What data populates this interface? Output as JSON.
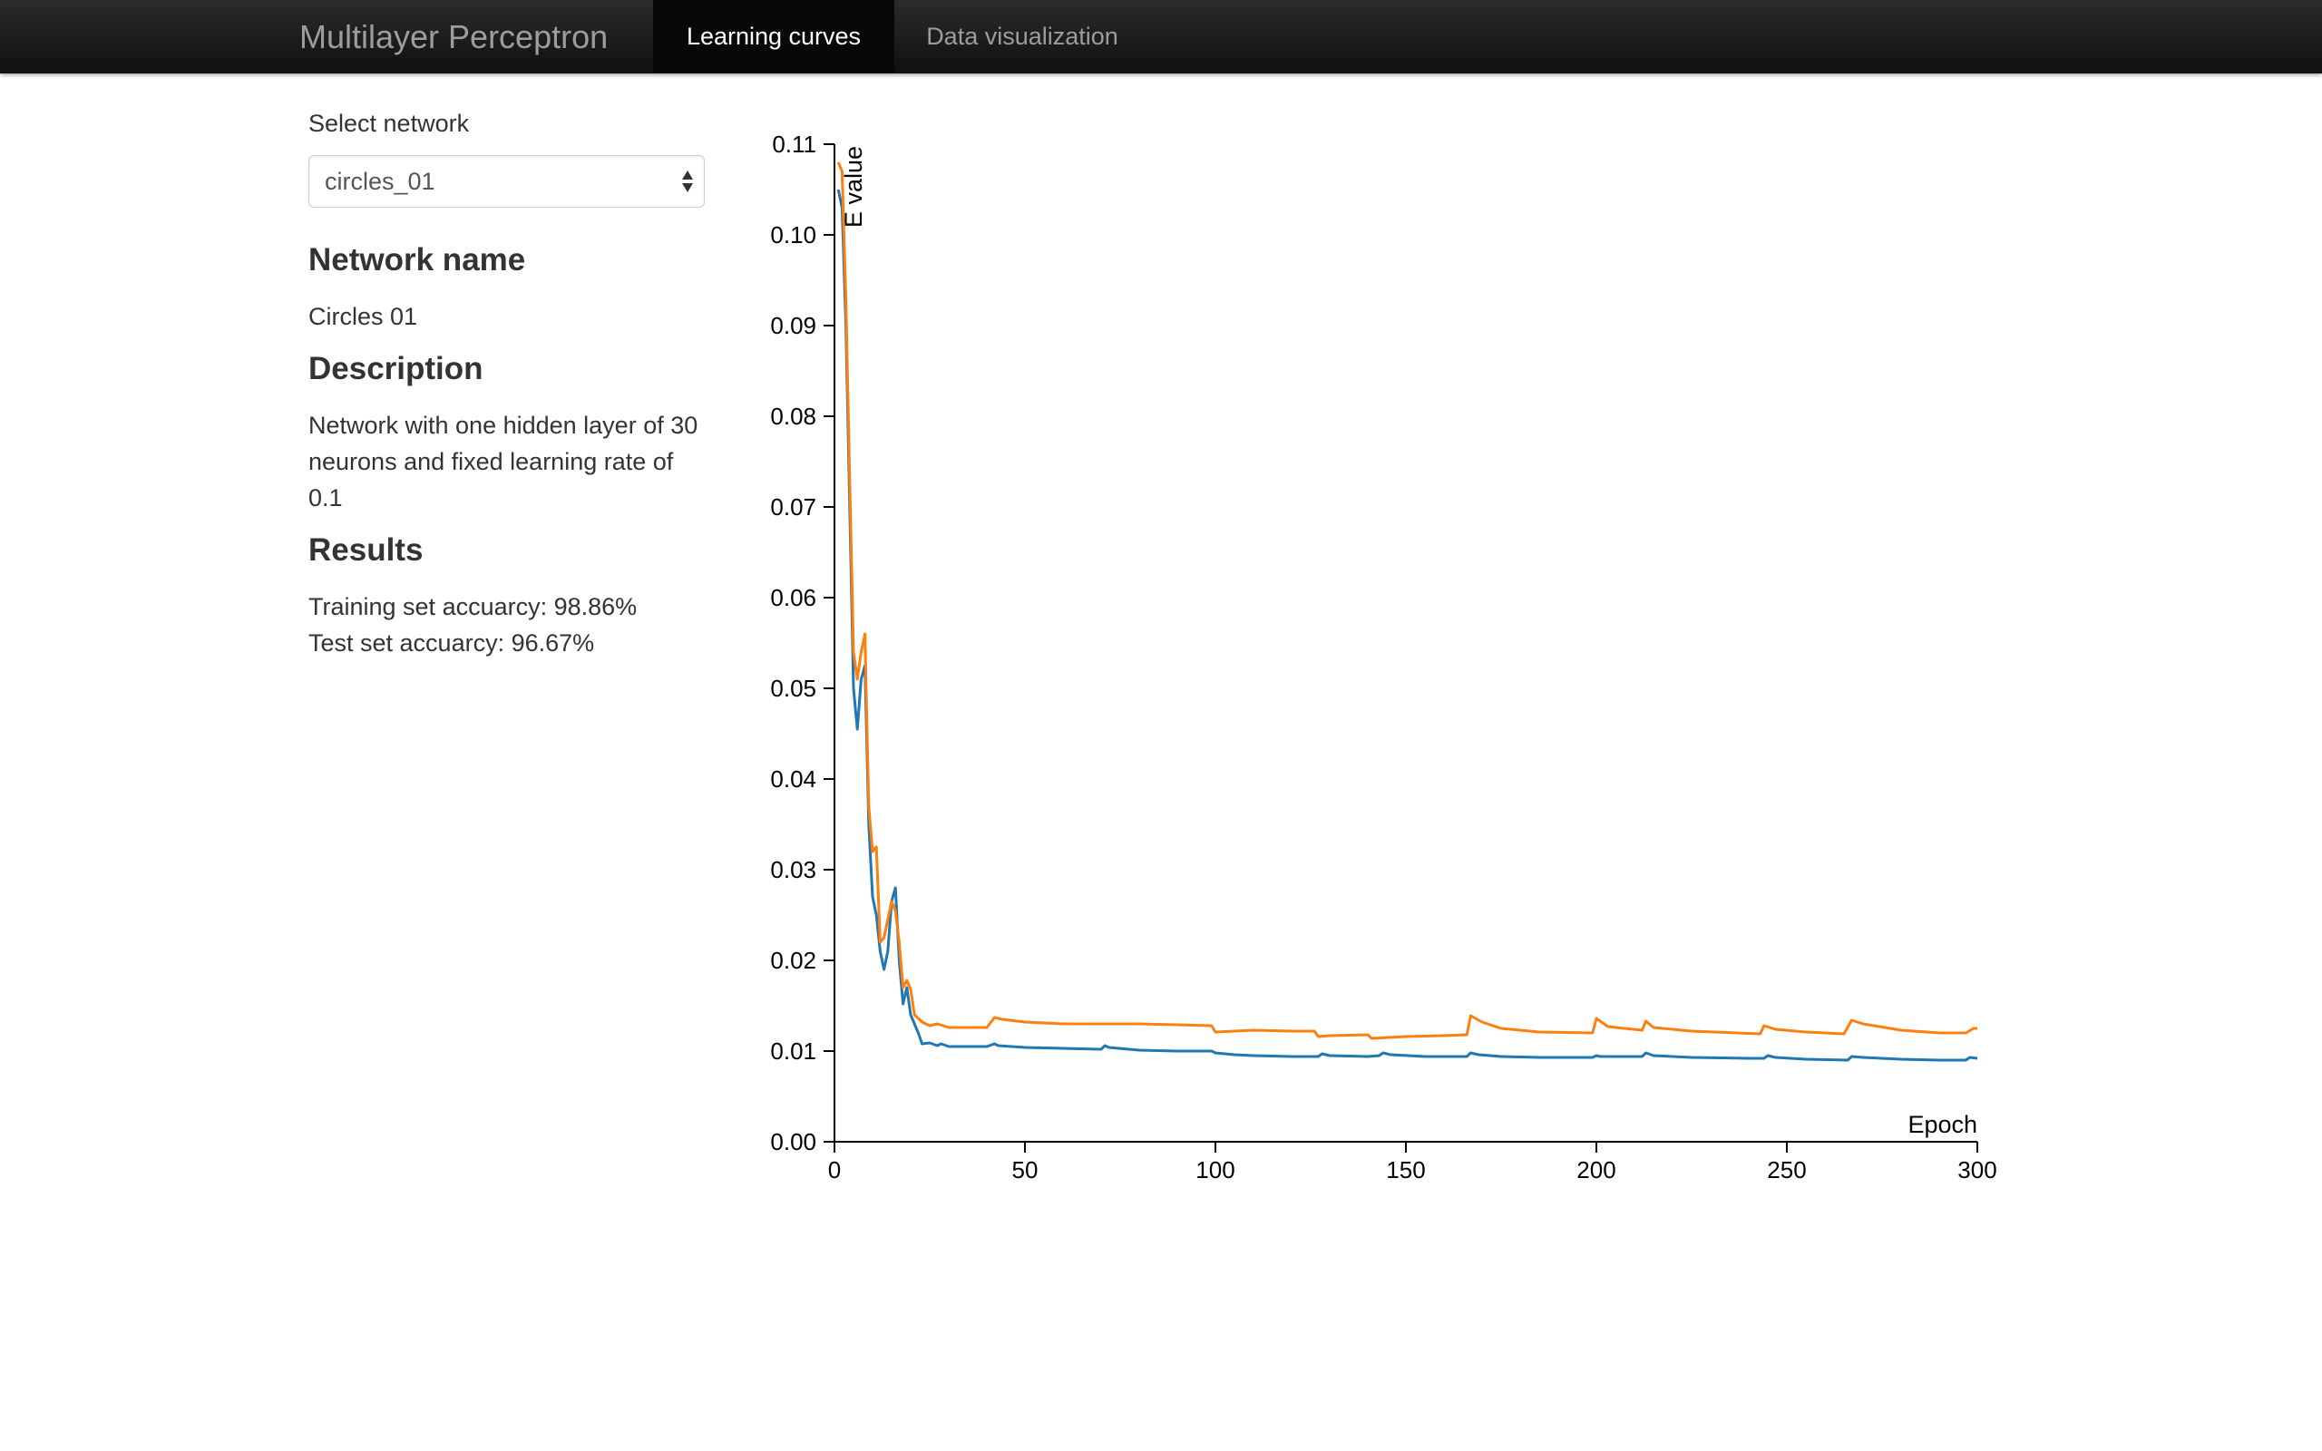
{
  "navbar": {
    "brand": "Multilayer Perceptron",
    "tabs": [
      {
        "label": "Learning curves",
        "active": true
      },
      {
        "label": "Data visualization",
        "active": false
      }
    ]
  },
  "sidebar": {
    "select_label": "Select network",
    "select_value": "circles_01",
    "network_name_heading": "Network name",
    "network_name": "Circles 01",
    "description_heading": "Description",
    "description": "Network with one hidden layer of 30 neurons and fixed learning rate of 0.1",
    "results_heading": "Results",
    "training_accuracy": "Training set accuarcy: 98.86%",
    "test_accuracy": "Test set accuarcy: 96.67%"
  },
  "chart_data": {
    "type": "line",
    "title": "",
    "xlabel": "Epoch",
    "ylabel": "E value",
    "xlim": [
      0,
      300
    ],
    "ylim": [
      0,
      0.11
    ],
    "x_ticks": [
      "0",
      "50",
      "100",
      "150",
      "200",
      "250",
      "300"
    ],
    "y_ticks": [
      "0.00",
      "0.01",
      "0.02",
      "0.03",
      "0.04",
      "0.05",
      "0.06",
      "0.07",
      "0.08",
      "0.09",
      "0.10",
      "0.11"
    ],
    "grid": false,
    "legend": "none",
    "series": [
      {
        "color": "#1f77b4",
        "points": [
          [
            1,
            0.105
          ],
          [
            2,
            0.103
          ],
          [
            3,
            0.09
          ],
          [
            4,
            0.07
          ],
          [
            5,
            0.05
          ],
          [
            6,
            0.0455
          ],
          [
            7,
            0.051
          ],
          [
            8,
            0.0525
          ],
          [
            9,
            0.035
          ],
          [
            10,
            0.027
          ],
          [
            11,
            0.025
          ],
          [
            12,
            0.021
          ],
          [
            13,
            0.019
          ],
          [
            14,
            0.021
          ],
          [
            15,
            0.0265
          ],
          [
            16,
            0.028
          ],
          [
            17,
            0.02
          ],
          [
            18,
            0.0152
          ],
          [
            19,
            0.017
          ],
          [
            20,
            0.014
          ],
          [
            22,
            0.012
          ],
          [
            23,
            0.0108
          ],
          [
            25,
            0.0109
          ],
          [
            27,
            0.0106
          ],
          [
            28,
            0.0108
          ],
          [
            30,
            0.0105
          ],
          [
            35,
            0.0105
          ],
          [
            40,
            0.0105
          ],
          [
            42,
            0.0108
          ],
          [
            43,
            0.0106
          ],
          [
            50,
            0.0104
          ],
          [
            60,
            0.0103
          ],
          [
            70,
            0.0102
          ],
          [
            71,
            0.0106
          ],
          [
            72,
            0.0104
          ],
          [
            80,
            0.0101
          ],
          [
            90,
            0.01
          ],
          [
            99,
            0.01
          ],
          [
            100,
            0.0098
          ],
          [
            105,
            0.0096
          ],
          [
            110,
            0.0095
          ],
          [
            120,
            0.0094
          ],
          [
            127,
            0.0094
          ],
          [
            128,
            0.0097
          ],
          [
            130,
            0.0095
          ],
          [
            140,
            0.0094
          ],
          [
            143,
            0.0095
          ],
          [
            144,
            0.0098
          ],
          [
            146,
            0.0096
          ],
          [
            155,
            0.0094
          ],
          [
            160,
            0.0094
          ],
          [
            166,
            0.0094
          ],
          [
            167,
            0.0098
          ],
          [
            169,
            0.0096
          ],
          [
            175,
            0.0094
          ],
          [
            185,
            0.0093
          ],
          [
            199,
            0.0093
          ],
          [
            200,
            0.0095
          ],
          [
            201,
            0.0094
          ],
          [
            212,
            0.0094
          ],
          [
            213,
            0.0098
          ],
          [
            215,
            0.0095
          ],
          [
            225,
            0.0093
          ],
          [
            240,
            0.0092
          ],
          [
            244,
            0.0092
          ],
          [
            245,
            0.0095
          ],
          [
            247,
            0.0093
          ],
          [
            255,
            0.0091
          ],
          [
            266,
            0.009
          ],
          [
            267,
            0.0094
          ],
          [
            270,
            0.0093
          ],
          [
            280,
            0.0091
          ],
          [
            290,
            0.009
          ],
          [
            297,
            0.009
          ],
          [
            298,
            0.0093
          ],
          [
            300,
            0.0092
          ]
        ]
      },
      {
        "color": "#ff7f0e",
        "points": [
          [
            1,
            0.108
          ],
          [
            2,
            0.107
          ],
          [
            3,
            0.093
          ],
          [
            4,
            0.073
          ],
          [
            5,
            0.054
          ],
          [
            6,
            0.051
          ],
          [
            7,
            0.054
          ],
          [
            8,
            0.056
          ],
          [
            9,
            0.037
          ],
          [
            10,
            0.032
          ],
          [
            11,
            0.0325
          ],
          [
            12,
            0.022
          ],
          [
            13,
            0.0225
          ],
          [
            14,
            0.0245
          ],
          [
            15,
            0.0265
          ],
          [
            16,
            0.0255
          ],
          [
            17,
            0.022
          ],
          [
            18,
            0.017
          ],
          [
            19,
            0.0178
          ],
          [
            20,
            0.0168
          ],
          [
            21,
            0.014
          ],
          [
            23,
            0.0132
          ],
          [
            25,
            0.0128
          ],
          [
            27,
            0.013
          ],
          [
            30,
            0.0126
          ],
          [
            35,
            0.0126
          ],
          [
            40,
            0.0126
          ],
          [
            42,
            0.0137
          ],
          [
            44,
            0.0135
          ],
          [
            50,
            0.0132
          ],
          [
            60,
            0.013
          ],
          [
            70,
            0.013
          ],
          [
            80,
            0.013
          ],
          [
            90,
            0.0129
          ],
          [
            99,
            0.0128
          ],
          [
            100,
            0.0121
          ],
          [
            105,
            0.0122
          ],
          [
            110,
            0.0123
          ],
          [
            120,
            0.0122
          ],
          [
            126,
            0.0122
          ],
          [
            127,
            0.0116
          ],
          [
            130,
            0.0117
          ],
          [
            140,
            0.0118
          ],
          [
            141,
            0.0114
          ],
          [
            150,
            0.0116
          ],
          [
            160,
            0.0117
          ],
          [
            166,
            0.0118
          ],
          [
            167,
            0.0139
          ],
          [
            170,
            0.0132
          ],
          [
            175,
            0.0125
          ],
          [
            185,
            0.0121
          ],
          [
            199,
            0.012
          ],
          [
            200,
            0.0136
          ],
          [
            203,
            0.0127
          ],
          [
            212,
            0.0123
          ],
          [
            213,
            0.0133
          ],
          [
            215,
            0.0126
          ],
          [
            225,
            0.0122
          ],
          [
            243,
            0.0119
          ],
          [
            244,
            0.0128
          ],
          [
            247,
            0.0124
          ],
          [
            255,
            0.0121
          ],
          [
            265,
            0.0119
          ],
          [
            267,
            0.0134
          ],
          [
            270,
            0.013
          ],
          [
            280,
            0.0123
          ],
          [
            290,
            0.012
          ],
          [
            297,
            0.012
          ],
          [
            299,
            0.0125
          ],
          [
            300,
            0.0125
          ]
        ]
      }
    ]
  }
}
